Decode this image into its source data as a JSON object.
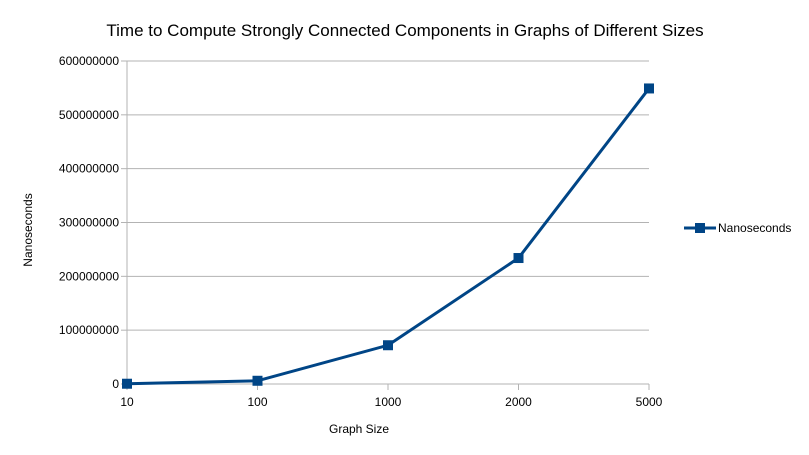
{
  "chart_data": {
    "type": "line",
    "title": "Time to Compute Strongly Connected Components in Graphs of Different Sizes",
    "xlabel": "Graph Size",
    "ylabel": "Nanoseconds",
    "categories": [
      "10",
      "100",
      "1000",
      "2000",
      "5000"
    ],
    "series": [
      {
        "name": "Nanoseconds",
        "values": [
          500000,
          6000000,
          72000000,
          234000000,
          549000000
        ]
      }
    ],
    "ylim": [
      0,
      600000000
    ],
    "yticks": [
      "0",
      "100000000",
      "200000000",
      "300000000",
      "400000000",
      "500000000",
      "600000000"
    ],
    "grid": true,
    "legend_position": "right",
    "series_color": "#004586",
    "grid_color": "#b3b3b3"
  }
}
